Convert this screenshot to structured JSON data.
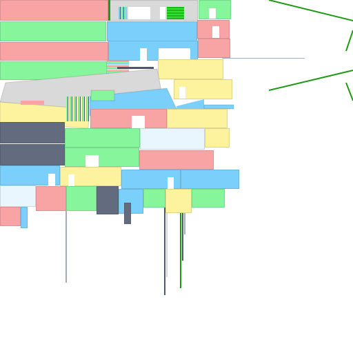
{
  "palette": {
    "red": "#f9a4a4",
    "green": "#86f59b",
    "blue": "#7bd0fb",
    "yellow": "#fdf29d",
    "gray": "#d9d9d9",
    "slate": "#636b7f",
    "ice": "#eaf6fd",
    "line_green": "#1c9a12",
    "line_slate": "#4e566c",
    "white": "#ffffff"
  }
}
